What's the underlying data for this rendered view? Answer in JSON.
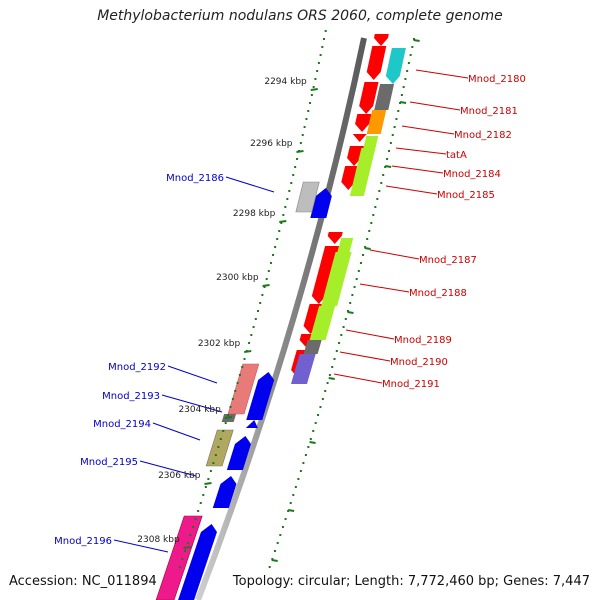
{
  "title": "Methylobacterium nodulans ORS 2060, complete genome",
  "accession": "Accession: NC_011894",
  "topology": "Topology: circular; Length: 7,772,460 bp; Genes: 7,447",
  "ticks": [
    "2294 kbp",
    "2296 kbp",
    "2298 kbp",
    "2300 kbp",
    "2302 kbp",
    "2304 kbp",
    "2306 kbp",
    "2308 kbp"
  ],
  "genes_right": [
    "Mnod_2180",
    "Mnod_2181",
    "Mnod_2182",
    "tatA",
    "Mnod_2184",
    "Mnod_2185",
    "Mnod_2187",
    "Mnod_2188",
    "Mnod_2189",
    "Mnod_2190",
    "Mnod_2191"
  ],
  "genes_left": [
    "Mnod_2186",
    "Mnod_2192",
    "Mnod_2193",
    "Mnod_2194",
    "Mnod_2195",
    "Mnod_2196"
  ],
  "colors": {
    "backbone": "#8c8c8c",
    "tick": "#1a7a1a",
    "right_label": "#cc0000",
    "left_label": "#0000cc",
    "cds_red": "#ff0000",
    "cds_blue": "#0000ee",
    "cyan": "#1ec8c8",
    "grey": "#6b6b6b",
    "orange": "#ff9900",
    "lime": "#a6ee2a",
    "purple": "#7060d0",
    "silver": "#bdbdbd",
    "salmon": "#e87a7a",
    "olive": "#b0a860",
    "magenta": "#ee1a8c"
  }
}
